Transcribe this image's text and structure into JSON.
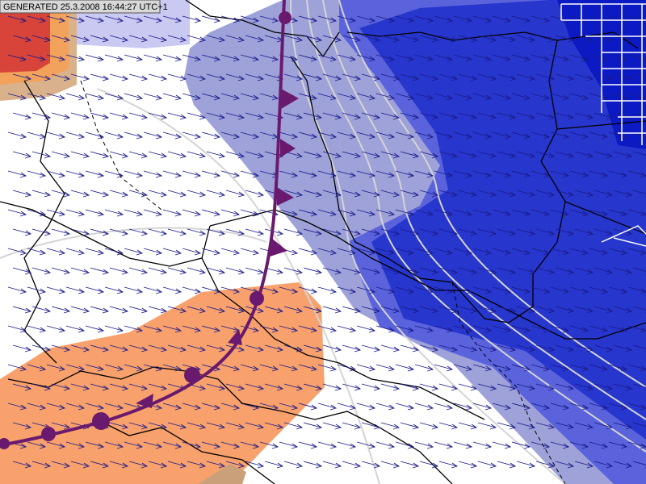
{
  "header": {
    "generated": "GENERATED 25.3.2008 16:44:27 UTC+1"
  }
}
